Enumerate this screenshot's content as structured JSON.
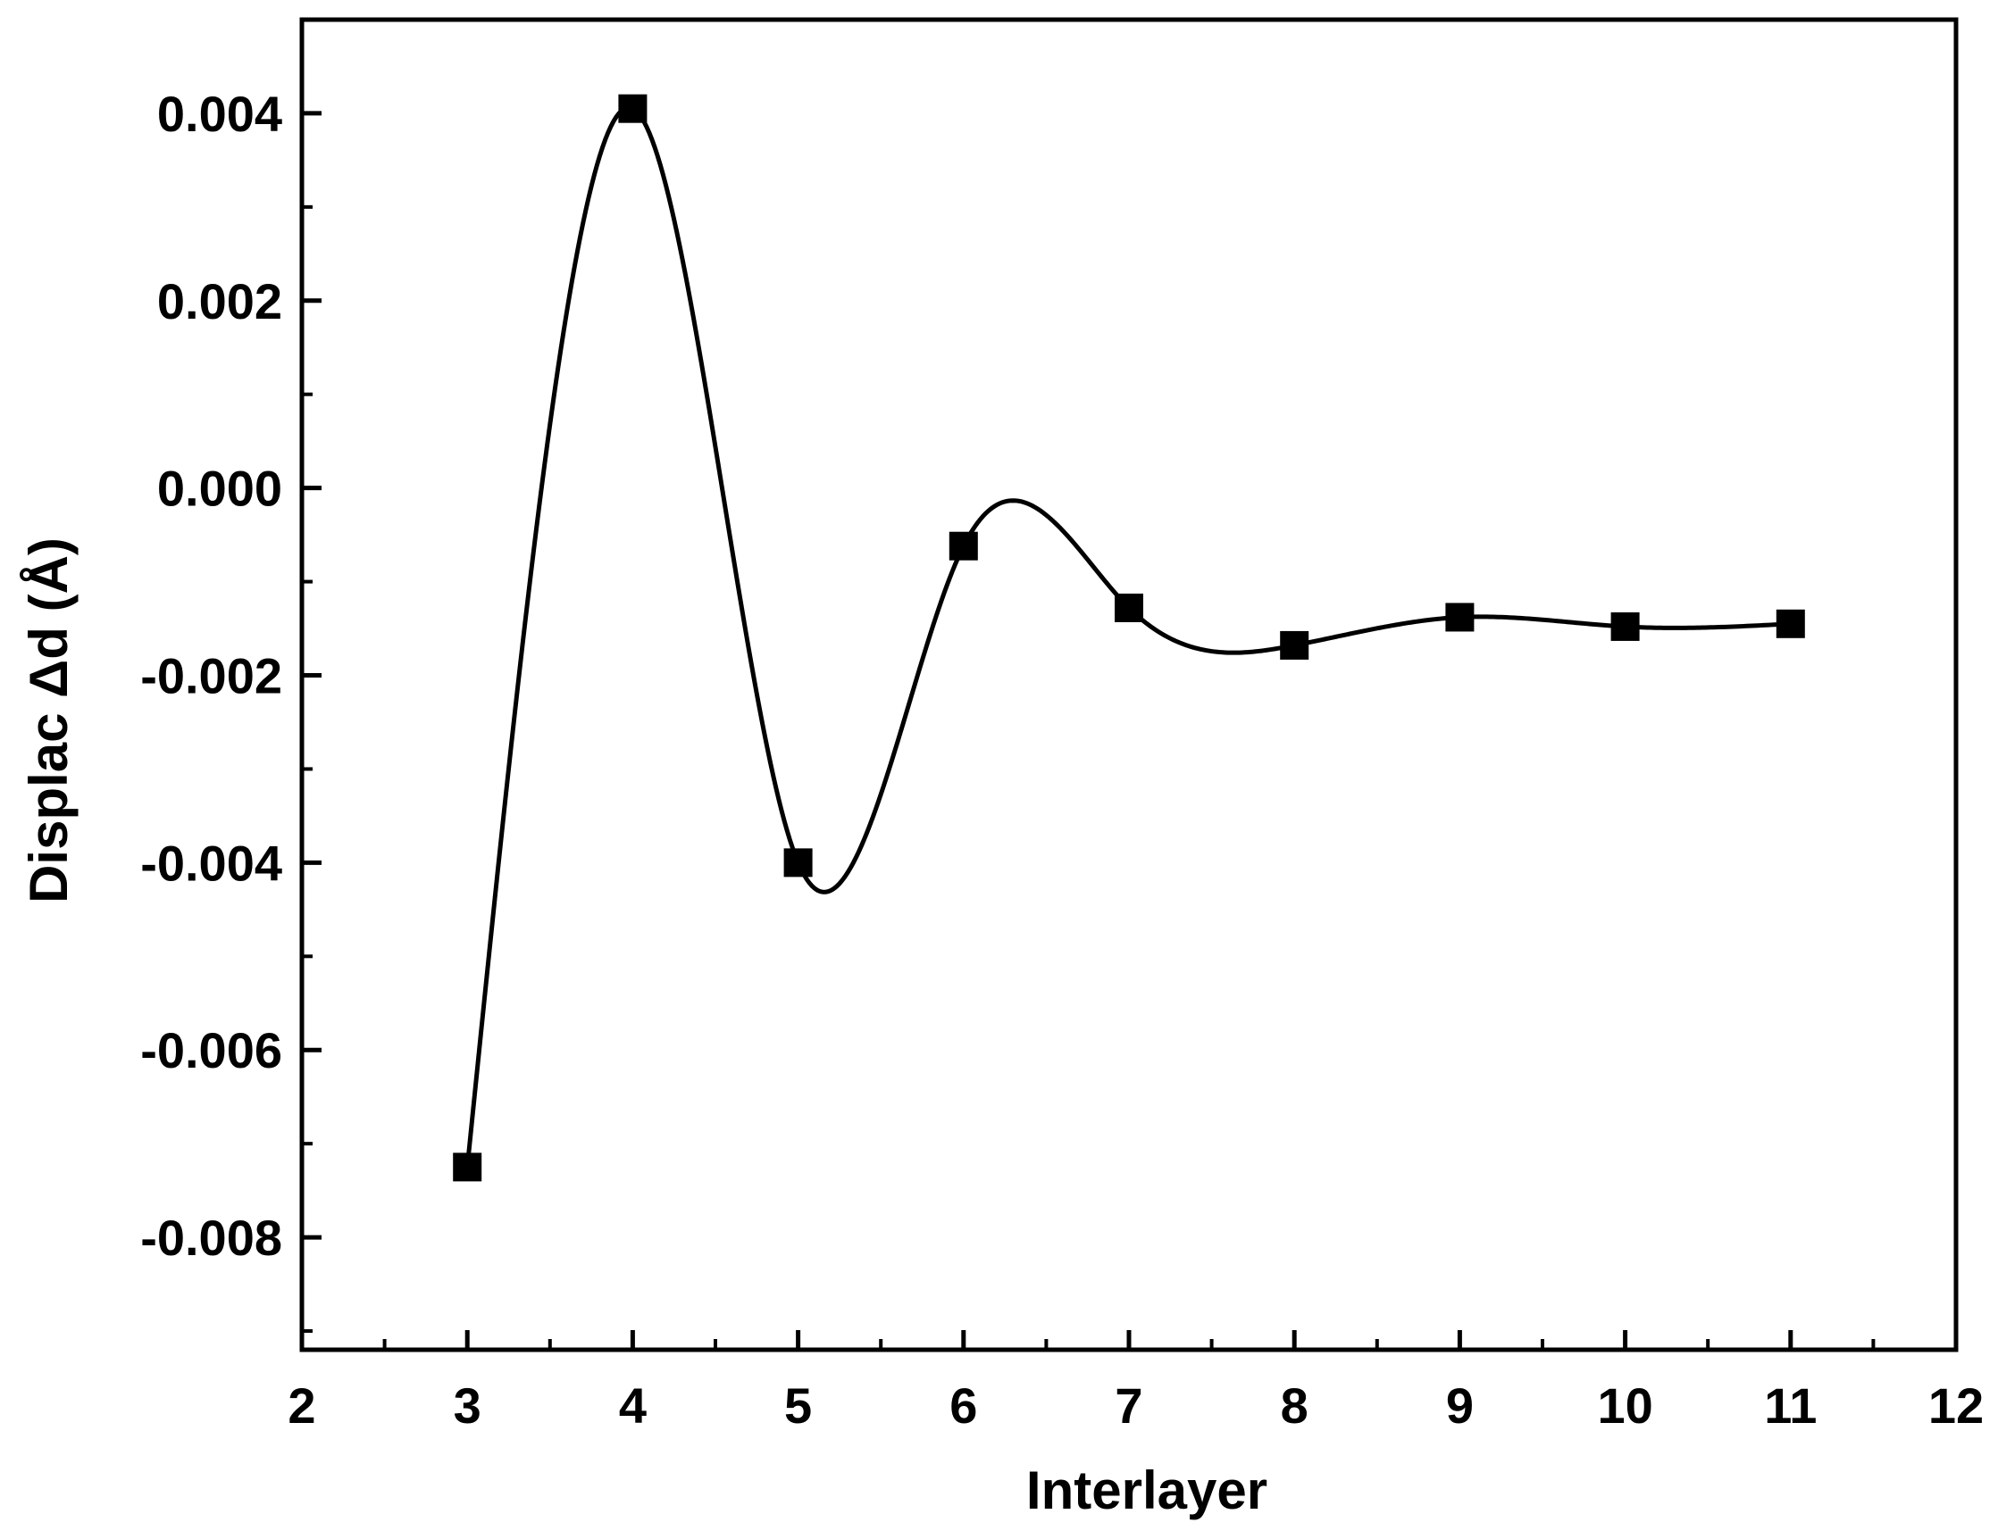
{
  "chart_data": {
    "type": "line",
    "title": "",
    "xlabel": "Interlayer",
    "ylabel": "Displac Δd (Å)",
    "xlim": [
      2,
      12
    ],
    "ylim": [
      -0.0092,
      0.005
    ],
    "x_ticks": [
      2,
      3,
      4,
      5,
      6,
      7,
      8,
      9,
      10,
      11,
      12
    ],
    "x_tick_labels": [
      "2",
      "3",
      "4",
      "5",
      "6",
      "7",
      "8",
      "9",
      "10",
      "11",
      "12"
    ],
    "y_ticks": [
      -0.008,
      -0.006,
      -0.004,
      -0.002,
      0.0,
      0.002,
      0.004
    ],
    "y_tick_labels": [
      "-0.008",
      "-0.006",
      "-0.004",
      "-0.002",
      "0.000",
      "0.002",
      "0.004"
    ],
    "grid": false,
    "legend": "none",
    "series": [
      {
        "x": [
          3,
          4,
          5,
          6,
          7,
          8,
          9,
          10,
          11
        ],
        "y": [
          -0.00725,
          0.00405,
          -0.004,
          -0.00062,
          -0.00128,
          -0.00168,
          -0.00138,
          -0.00148,
          -0.00145
        ],
        "line": "smooth spline",
        "marker": "filled square",
        "color": "#000000"
      }
    ]
  }
}
